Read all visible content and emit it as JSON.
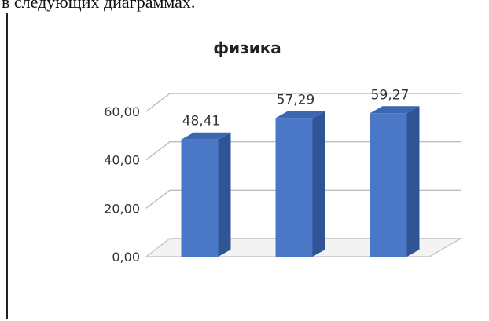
{
  "page": {
    "caption_fragment": "в следующих диаграммах."
  },
  "chart_data": {
    "type": "bar",
    "title": "физика",
    "categories": [
      "",
      "",
      ""
    ],
    "values": [
      48.41,
      57.29,
      59.27
    ],
    "value_labels": [
      "48,41",
      "57,29",
      "59,27"
    ],
    "y_ticks": [
      0,
      20,
      40,
      60
    ],
    "y_tick_labels": [
      "0,00",
      "20,00",
      "40,00",
      "60,00"
    ],
    "ylim": [
      0,
      60
    ],
    "grid": true,
    "legend": "none",
    "style": "3d-column",
    "colors": {
      "bar_front": "#4a78c6",
      "bar_side": "#2f5597",
      "bar_top": "#3b66b0",
      "gridline": "#bdbdbd",
      "floor": "#c8c8c8"
    }
  }
}
